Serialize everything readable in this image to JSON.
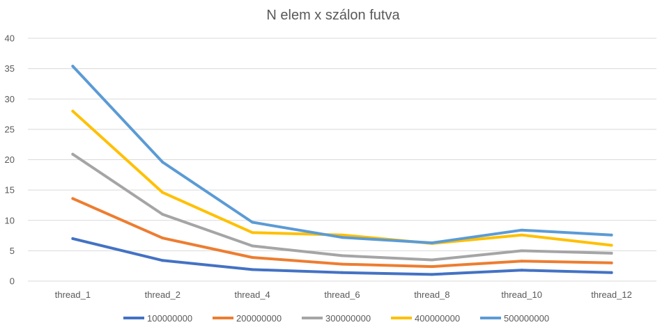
{
  "chart_data": {
    "type": "line",
    "title": "N elem x szálon futva",
    "xlabel": "",
    "ylabel": "",
    "categories": [
      "thread_1",
      "thread_2",
      "thread_4",
      "thread_6",
      "thread_8",
      "thread_10",
      "thread_12"
    ],
    "ylim": [
      0,
      40
    ],
    "yticks": [
      0,
      5,
      10,
      15,
      20,
      25,
      30,
      35,
      40
    ],
    "grid": true,
    "legend_position": "bottom",
    "series": [
      {
        "name": "100000000",
        "color": "#4472c4",
        "values": [
          7.0,
          3.4,
          1.9,
          1.4,
          1.1,
          1.8,
          1.4
        ]
      },
      {
        "name": "200000000",
        "color": "#ed7d31",
        "values": [
          13.6,
          7.1,
          3.9,
          2.8,
          2.4,
          3.3,
          3.0
        ]
      },
      {
        "name": "300000000",
        "color": "#a5a5a5",
        "values": [
          20.9,
          11.0,
          5.8,
          4.2,
          3.5,
          5.0,
          4.6
        ]
      },
      {
        "name": "400000000",
        "color": "#ffc000",
        "values": [
          28.0,
          14.6,
          8.0,
          7.6,
          6.2,
          7.6,
          5.9
        ]
      },
      {
        "name": "500000000",
        "color": "#5b9bd5",
        "values": [
          35.4,
          19.6,
          9.7,
          7.2,
          6.3,
          8.4,
          7.6
        ]
      }
    ]
  }
}
